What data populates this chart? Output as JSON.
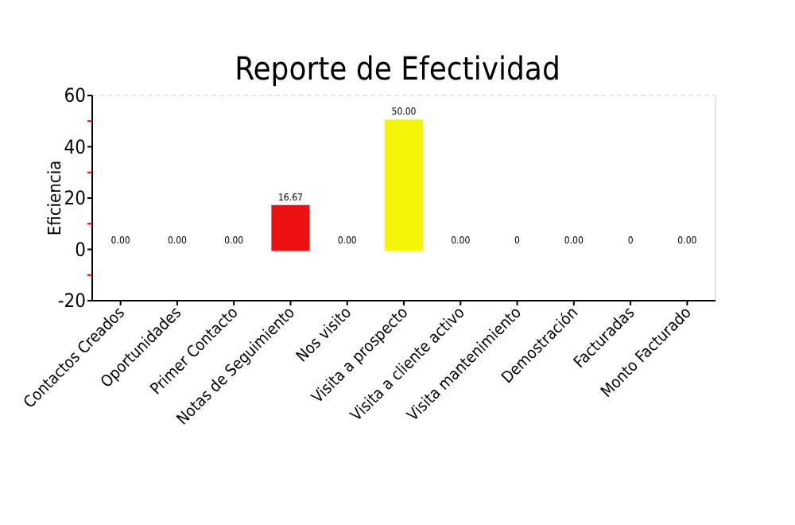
{
  "chart_data": {
    "type": "bar",
    "title": "Reporte de Efectividad",
    "ylabel": "Eficiencia",
    "categories": [
      "Contactos Creados",
      "Oportunidades",
      "Primer Contacto",
      "Notas de Seguimiento",
      "Nos visito",
      "Visita a prospecto",
      "Visita a cliente activo",
      "Visita mantenimiento",
      "Demostración",
      "Facturadas",
      "Monto Facturado"
    ],
    "values": [
      0,
      0,
      0,
      16.67,
      0,
      50,
      0,
      0,
      0,
      0,
      0
    ],
    "colors": [
      "#f08080",
      "#f08080",
      "#f08080",
      "#ee1111",
      "#f08080",
      "#f5f50a",
      "#f08080",
      "#f08080",
      "#f08080",
      "#f08080",
      "#f08080"
    ],
    "value_labels": [
      "0.00",
      "0.00",
      "0.00",
      "16.67",
      "0.00",
      "50.00",
      "0.00",
      "0",
      "0.00",
      "0",
      "0.00"
    ],
    "ylim": [
      -20,
      60
    ],
    "yticks": [
      -20,
      {
        "value": -10,
        "label": null
      },
      0,
      {
        "value": 10,
        "label": null
      },
      20,
      {
        "value": 30,
        "label": null
      },
      40,
      {
        "value": 50,
        "label": null
      },
      60
    ]
  }
}
